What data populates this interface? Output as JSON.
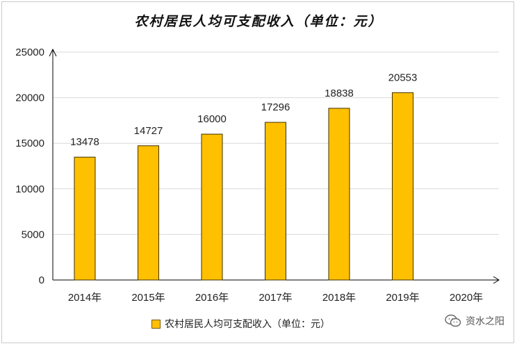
{
  "chart_data": {
    "type": "bar",
    "title": "农村居民人均可支配收入（单位：元）",
    "categories": [
      "2014年",
      "2015年",
      "2016年",
      "2017年",
      "2018年",
      "2019年",
      "2020年"
    ],
    "series": [
      {
        "name": "农村居民人均可支配收入（单位：元）",
        "values": [
          13478,
          14727,
          16000,
          17296,
          18838,
          20553,
          null
        ],
        "color": "#FFC000",
        "border_color": "#3d2f00"
      }
    ],
    "data_labels": [
      "13478",
      "14727",
      "16000",
      "17296",
      "18838",
      "20553",
      ""
    ],
    "yticks": [
      0,
      5000,
      10000,
      15000,
      20000,
      25000
    ],
    "ylim": [
      0,
      25000
    ],
    "grid": true,
    "legend_position": "bottom"
  },
  "watermark": {
    "text": "资水之阳",
    "icon": "wechat-icon"
  }
}
